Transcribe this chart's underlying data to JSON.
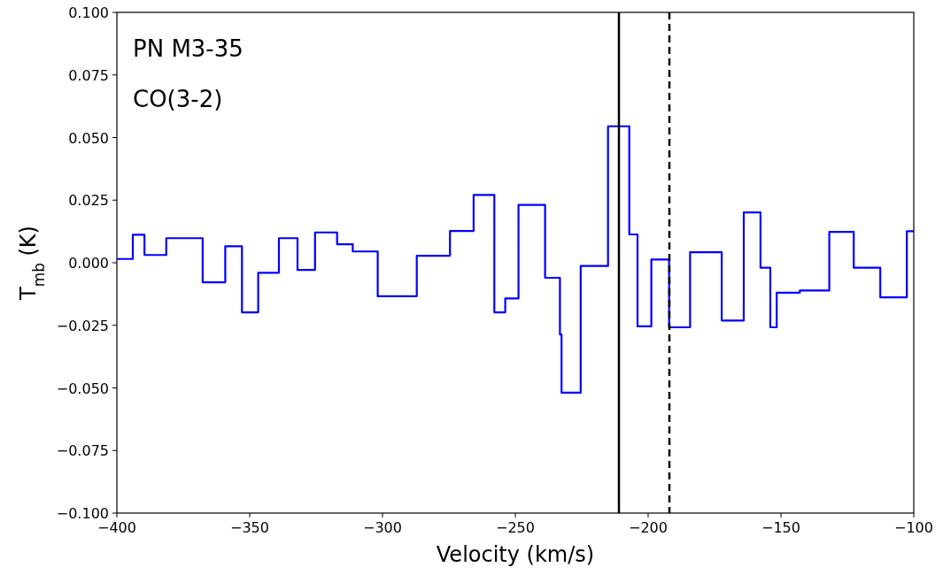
{
  "chart_data": {
    "type": "step",
    "xlabel": "Velocity (km/s)",
    "ylabel": "T$_{mb}$ (K)",
    "annotations": [
      "PN M3-35",
      "CO(3-2)"
    ],
    "x": [
      -400,
      -394,
      -389.6,
      -381.4,
      -367.7,
      -359.2,
      -352.9,
      -346.8,
      -339,
      -332,
      -325.4,
      -317.1,
      -311.2,
      -301.8,
      -287.1,
      -274.6,
      -265.7,
      -257.9,
      -253.8,
      -248.8,
      -238.8,
      -233.2,
      -232.6,
      -225.4,
      -215.1,
      -207.1,
      -204,
      -198.8,
      -192.1,
      -184.2,
      -172.3,
      -164,
      -157.7,
      -154,
      -151.6,
      -142.9,
      -131.8,
      -122.6,
      -112.6,
      -102.6,
      -100
    ],
    "series": [
      {
        "color": "#0000ff",
        "values": [
          0.0015,
          0.0112,
          0.0031,
          0.0098,
          -0.0078,
          0.0066,
          -0.0198,
          -0.004,
          0.0098,
          -0.0029,
          0.0121,
          0.0074,
          0.0045,
          -0.0134,
          0.0028,
          0.0127,
          0.0271,
          -0.0198,
          -0.0143,
          0.0231,
          -0.006,
          -0.0287,
          -0.0519,
          -0.0013,
          0.0545,
          0.0113,
          -0.0254,
          0.0013,
          -0.0258,
          0.0042,
          -0.0231,
          0.0201,
          -0.002,
          -0.0258,
          -0.012,
          -0.0111,
          0.0123,
          -0.002,
          -0.0138,
          0.0126,
          0.0126
        ]
      }
    ],
    "xlim": [
      -400,
      -100
    ],
    "xticks": [
      {
        "value": -400,
        "label": "−400"
      },
      {
        "value": -350,
        "label": "−350"
      },
      {
        "value": -300,
        "label": "−300"
      },
      {
        "value": -250,
        "label": "−250"
      },
      {
        "value": -200,
        "label": "−200"
      },
      {
        "value": -150,
        "label": "−150"
      },
      {
        "value": -100,
        "label": "−100"
      }
    ],
    "ylim": [
      -0.1,
      0.1
    ],
    "yticks": [
      {
        "value": -0.1,
        "label": "−0.100"
      },
      {
        "value": -0.075,
        "label": "−0.075"
      },
      {
        "value": -0.05,
        "label": "−0.050"
      },
      {
        "value": -0.025,
        "label": "−0.025"
      },
      {
        "value": 0,
        "label": "0.000"
      },
      {
        "value": 0.025,
        "label": "0.025"
      },
      {
        "value": 0.05,
        "label": "0.050"
      },
      {
        "value": 0.075,
        "label": "0.075"
      },
      {
        "value": 0.1,
        "label": "0.100"
      }
    ],
    "ref_lines": [
      {
        "axis": "x",
        "value": -211,
        "color": "#000000",
        "line_style": "solid"
      },
      {
        "axis": "x",
        "value": -192,
        "color": "#000000",
        "line_style": "dashed"
      }
    ],
    "grid": false
  }
}
